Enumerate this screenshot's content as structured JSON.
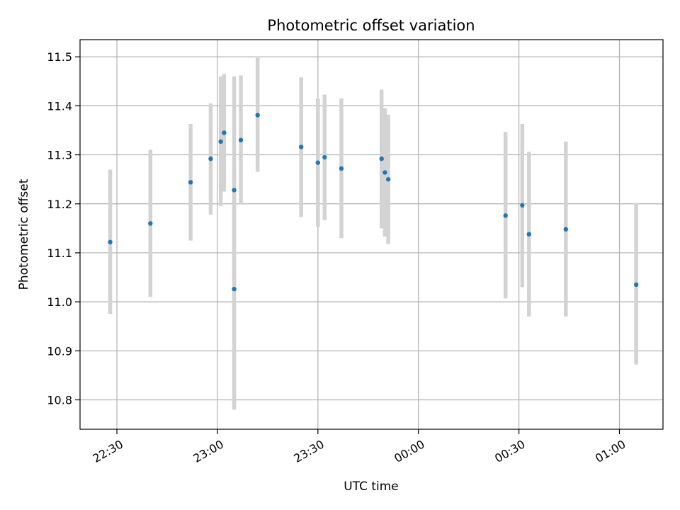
{
  "chart_data": {
    "type": "scatter",
    "title": "Photometric offset variation",
    "xlabel": "UTC time",
    "ylabel": "Photometric offset",
    "x_tick_labels": [
      "22:30",
      "23:00",
      "23:30",
      "00:00",
      "00:30",
      "01:00"
    ],
    "y_tick_labels": [
      "10.8",
      "10.9",
      "11.0",
      "11.1",
      "11.2",
      "11.3",
      "11.4",
      "11.5"
    ],
    "y_ticks": [
      10.8,
      10.9,
      11.0,
      11.1,
      11.2,
      11.3,
      11.4,
      11.5
    ],
    "xlim": [
      "22:19",
      "01:13"
    ],
    "ylim": [
      10.74,
      11.535
    ],
    "grid": true,
    "marker_color": "#1f77b4",
    "errorbar_color": "#d3d3d3",
    "points": [
      {
        "time": "22:28",
        "value": 11.122,
        "low": 10.975,
        "high": 11.27
      },
      {
        "time": "22:40",
        "value": 11.16,
        "low": 11.01,
        "high": 11.31
      },
      {
        "time": "22:52",
        "value": 11.244,
        "low": 11.125,
        "high": 11.363
      },
      {
        "time": "22:58",
        "value": 11.292,
        "low": 11.178,
        "high": 11.405
      },
      {
        "time": "23:01",
        "value": 11.327,
        "low": 11.195,
        "high": 11.46
      },
      {
        "time": "23:02",
        "value": 11.345,
        "low": 11.225,
        "high": 11.465
      },
      {
        "time": "23:05",
        "value": 11.026,
        "low": 10.78,
        "high": 11.272
      },
      {
        "time": "23:05",
        "value": 11.228,
        "low": 10.995,
        "high": 11.46
      },
      {
        "time": "23:07",
        "value": 11.33,
        "low": 11.2,
        "high": 11.462
      },
      {
        "time": "23:12",
        "value": 11.381,
        "low": 11.265,
        "high": 11.498
      },
      {
        "time": "23:25",
        "value": 11.316,
        "low": 11.173,
        "high": 11.458
      },
      {
        "time": "23:30",
        "value": 11.284,
        "low": 11.153,
        "high": 11.415
      },
      {
        "time": "23:32",
        "value": 11.295,
        "low": 11.167,
        "high": 11.423
      },
      {
        "time": "23:37",
        "value": 11.272,
        "low": 11.13,
        "high": 11.415
      },
      {
        "time": "23:49",
        "value": 11.292,
        "low": 11.15,
        "high": 11.433
      },
      {
        "time": "23:50",
        "value": 11.264,
        "low": 11.133,
        "high": 11.395
      },
      {
        "time": "23:51",
        "value": 11.25,
        "low": 11.118,
        "high": 11.382
      },
      {
        "time": "00:26",
        "value": 11.176,
        "low": 11.007,
        "high": 11.347
      },
      {
        "time": "00:31",
        "value": 11.197,
        "low": 11.03,
        "high": 11.363
      },
      {
        "time": "00:33",
        "value": 11.138,
        "low": 10.97,
        "high": 11.306
      },
      {
        "time": "00:44",
        "value": 11.148,
        "low": 10.97,
        "high": 11.327
      },
      {
        "time": "01:05",
        "value": 11.035,
        "low": 10.872,
        "high": 11.202
      }
    ]
  }
}
